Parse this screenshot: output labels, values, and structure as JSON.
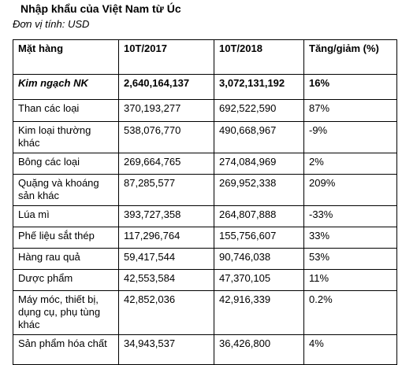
{
  "title": "Nhập khẩu của Việt Nam từ Úc",
  "unit": "Đơn vị tính: USD",
  "table": {
    "headers": [
      "Mặt hàng",
      "10T/2017",
      "10T/2018",
      "Tăng/giảm (%)"
    ],
    "total": [
      "Kim ngạch NK",
      "2,640,164,137",
      "3,072,131,192",
      "16%"
    ],
    "rows": [
      [
        "Than các loại",
        "370,193,277",
        "692,522,590",
        "87%"
      ],
      [
        "Kim loại thường khác",
        "538,076,770",
        "490,668,967",
        "-9%"
      ],
      [
        "Bông các loại",
        "269,664,765",
        "274,084,969",
        "2%"
      ],
      [
        "Quặng và khoáng sản khác",
        "87,285,577",
        "269,952,338",
        "209%"
      ],
      [
        "Lúa mì",
        "393,727,358",
        "264,807,888",
        "-33%"
      ],
      [
        "Phế liệu sắt thép",
        "117,296,764",
        "155,756,607",
        "33%"
      ],
      [
        "Hàng rau quả",
        "59,417,544",
        "90,746,038",
        "53%"
      ],
      [
        "Dược phẩm",
        "42,553,584",
        "47,370,105",
        "11%"
      ],
      [
        "Máy móc, thiết bị, dụng cụ, phụ tùng khác",
        "42,852,036",
        "42,916,339",
        "0.2%"
      ],
      [
        "Sản phẩm hóa chất",
        "34,943,537",
        "36,426,800",
        "4%"
      ]
    ]
  }
}
